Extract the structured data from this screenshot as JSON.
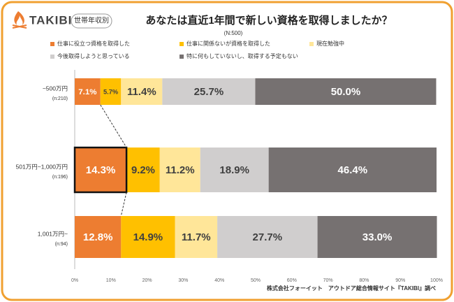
{
  "logo": "TAKIBI",
  "badge": "世帯年収別",
  "chart_data": {
    "type": "stacked_barh",
    "title": "あなたは直近1年間で新しい資格を取得しましたか？",
    "subtitle": "(N:500)",
    "categories": [
      "~500万円",
      "501万円~1,000万円",
      "1,001万円~"
    ],
    "category_notes": [
      "(n:210)",
      "(n:196)",
      "(n:94)"
    ],
    "series": [
      {
        "name": "仕事に役立つ資格を取得した",
        "color": "#ED7D31",
        "values": [
          7.1,
          14.3,
          12.8
        ],
        "value_labels": [
          "7.1%",
          "14.3%",
          "12.8%"
        ]
      },
      {
        "name": "仕事に関係ないが資格を取得した",
        "color": "#FFC000",
        "values": [
          5.7,
          9.2,
          14.9
        ],
        "value_labels": [
          "5.7%",
          "9.2%",
          "14.9%"
        ]
      },
      {
        "name": "現在勉強中",
        "color": "#FFE699",
        "values": [
          11.4,
          11.2,
          11.7
        ],
        "value_labels": [
          "11.4%",
          "11.2%",
          "11.7%"
        ]
      },
      {
        "name": "今後取得しようと思っている",
        "color": "#D0CECE",
        "values": [
          25.7,
          18.9,
          27.7
        ],
        "value_labels": [
          "25.7%",
          "18.9%",
          "27.7%"
        ]
      },
      {
        "name": "特に何もしていないし、取得する予定もない",
        "color": "#767171",
        "values": [
          50.0,
          46.4,
          33.0
        ],
        "value_labels": [
          "50.0%",
          "46.4%",
          "33.0%"
        ]
      }
    ],
    "xlim": [
      0,
      100
    ],
    "xticks": [
      {
        "value": 0,
        "label": "0%"
      },
      {
        "value": 10,
        "label": "10%"
      },
      {
        "value": 20,
        "label": "20%"
      },
      {
        "value": 30,
        "label": "30%"
      },
      {
        "value": 40,
        "label": "40%"
      },
      {
        "value": 50,
        "label": "50%"
      },
      {
        "value": 60,
        "label": "60%"
      },
      {
        "value": 70,
        "label": "70%"
      },
      {
        "value": 80,
        "label": "80%"
      },
      {
        "value": 90,
        "label": "90%"
      },
      {
        "value": 100,
        "label": "100%"
      }
    ],
    "highlight": {
      "series": 0,
      "category": 1
    },
    "source": "株式会社フォーイット　アウトドア総合情報サイト『TAKIBI』調べ"
  }
}
